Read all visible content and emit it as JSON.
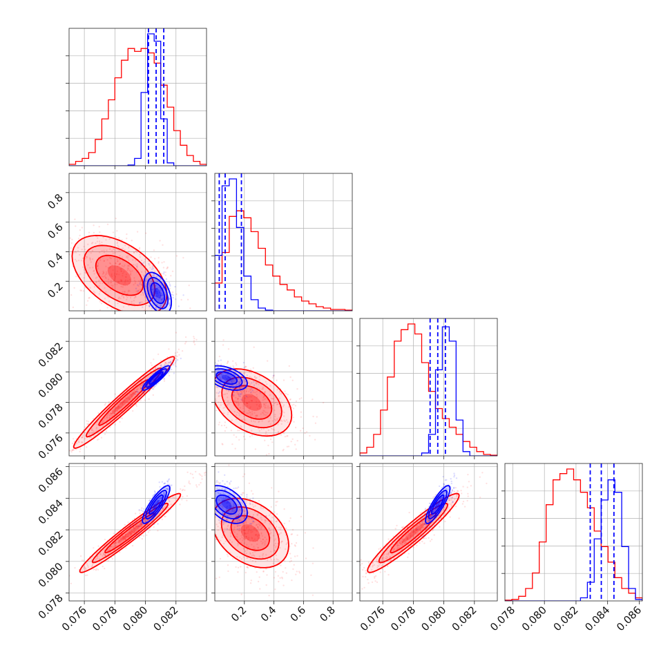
{
  "colors": {
    "posterior_a": "#ff0000",
    "posterior_b": "#0000ff",
    "grid": "#b0b0b0"
  },
  "chart_data": {
    "type": "corner",
    "grid": true,
    "parameters": [
      {
        "range": [
          0.075,
          0.084
        ],
        "ticks": [
          0.076,
          0.078,
          0.08,
          0.082
        ],
        "tick_labels": [
          "0.076",
          "0.078",
          "0.080",
          "0.082"
        ]
      },
      {
        "range": [
          0.0,
          0.93
        ],
        "ticks": [
          0.2,
          0.4,
          0.6,
          0.8
        ],
        "tick_labels": [
          "0.2",
          "0.4",
          "0.6",
          "0.8"
        ]
      },
      {
        "range": [
          0.0745,
          0.0835
        ],
        "ticks": [
          0.076,
          0.078,
          0.08,
          0.082
        ],
        "tick_labels": [
          "0.076",
          "0.078",
          "0.080",
          "0.082"
        ]
      },
      {
        "range": [
          0.0775,
          0.0862
        ],
        "ticks": [
          0.078,
          0.08,
          0.082,
          0.084,
          0.086
        ],
        "tick_labels": [
          "0.078",
          "0.080",
          "0.082",
          "0.084",
          "0.086"
        ]
      }
    ],
    "series": [
      {
        "color": "#ff0000",
        "marginals": [
          {
            "bins": [
              0.075,
              0.084
            ],
            "counts": [
              1,
              3,
              5,
              9,
              18,
              32,
              45,
              60,
              72,
              80,
              78,
              80,
              77,
              70,
              55,
              40,
              24,
              14,
              7,
              3,
              1
            ]
          },
          {
            "bins": [
              0.0,
              0.93
            ],
            "counts": [
              20,
              42,
              68,
              72,
              67,
              57,
              45,
              33,
              25,
              19,
              15,
              10,
              7,
              5,
              3,
              2,
              1,
              1,
              0.5
            ]
          },
          {
            "bins": [
              0.0745,
              0.0835
            ],
            "counts": [
              2,
              6,
              15,
              32,
              55,
              80,
              88,
              92,
              85,
              65,
              45,
              33,
              26,
              20,
              15,
              10,
              6,
              3,
              1,
              0.5
            ]
          },
          {
            "bins": [
              0.0775,
              0.0862
            ],
            "counts": [
              0.5,
              1,
              3,
              8,
              18,
              38,
              62,
              78,
              82,
              85,
              78,
              70,
              60,
              45,
              35,
              25,
              15,
              8,
              5,
              2
            ]
          }
        ],
        "pairs": [
          {
            "x": 0,
            "y": 1,
            "mean": [
              0.0783,
              0.24
            ],
            "sigma": [
              0.00155,
              0.135
            ],
            "rho": -0.48
          },
          {
            "x": 0,
            "y": 2,
            "mean": [
              0.0786,
              0.078
            ],
            "sigma": [
              0.00165,
              0.0015
            ],
            "rho": 0.97
          },
          {
            "x": 0,
            "y": 3,
            "mean": [
              0.079,
              0.0818
            ],
            "sigma": [
              0.00165,
              0.00125
            ],
            "rho": 0.97
          },
          {
            "x": 1,
            "y": 2,
            "mean": [
              0.25,
              0.078
            ],
            "sigma": [
              0.135,
              0.0011
            ],
            "rho": -0.38
          },
          {
            "x": 1,
            "y": 3,
            "mean": [
              0.24,
              0.0818
            ],
            "sigma": [
              0.13,
              0.0011
            ],
            "rho": -0.35
          },
          {
            "x": 2,
            "y": 3,
            "mean": [
              0.078,
              0.0818
            ],
            "sigma": [
              0.0015,
              0.00125
            ],
            "rho": 0.95
          }
        ]
      },
      {
        "color": "#0000ff",
        "marginals": [
          {
            "bins": [
              0.075,
              0.084
            ],
            "counts": [
              0,
              0,
              0,
              0,
              0,
              0,
              0,
              0,
              0,
              0.5,
              5,
              50,
              90,
              85,
              32,
              2,
              0,
              0,
              0,
              0,
              0
            ],
            "quantiles": [
              0.0802,
              0.0807,
              0.0812
            ]
          },
          {
            "bins": [
              0.0,
              0.93
            ],
            "counts": [
              40,
              90,
              95,
              60,
              25,
              8,
              2,
              0.5,
              0,
              0,
              0,
              0,
              0,
              0,
              0,
              0,
              0,
              0,
              0
            ],
            "quantiles": [
              0.03,
              0.07,
              0.18
            ]
          },
          {
            "bins": [
              0.0745,
              0.0835
            ],
            "counts": [
              0,
              0,
              0,
              0,
              0,
              0,
              0,
              0,
              0,
              2,
              15,
              60,
              90,
              80,
              25,
              3,
              0,
              0,
              0,
              0
            ],
            "quantiles": [
              0.0791,
              0.0796,
              0.0801
            ]
          },
          {
            "bins": [
              0.0775,
              0.0862
            ],
            "counts": [
              0,
              0,
              0,
              0,
              0,
              0,
              0,
              0,
              0,
              0,
              0,
              2,
              12,
              40,
              65,
              78,
              70,
              35,
              8,
              1
            ],
            "quantiles": [
              0.0829,
              0.0836,
              0.0844
            ]
          }
        ],
        "pairs": [
          {
            "x": 0,
            "y": 1,
            "mean": [
              0.0808,
              0.12
            ],
            "sigma": [
              0.00045,
              0.07
            ],
            "rho": -0.45
          },
          {
            "x": 0,
            "y": 2,
            "mean": [
              0.0807,
              0.0796
            ],
            "sigma": [
              0.00045,
              0.0004
            ],
            "rho": 0.9
          },
          {
            "x": 0,
            "y": 3,
            "mean": [
              0.0807,
              0.0836
            ],
            "sigma": [
              0.00045,
              0.0006
            ],
            "rho": 0.85
          },
          {
            "x": 1,
            "y": 2,
            "mean": [
              0.08,
              0.0796
            ],
            "sigma": [
              0.07,
              0.0004
            ],
            "rho": -0.45
          },
          {
            "x": 1,
            "y": 3,
            "mean": [
              0.08,
              0.0836
            ],
            "sigma": [
              0.07,
              0.0006
            ],
            "rho": -0.45
          },
          {
            "x": 2,
            "y": 3,
            "mean": [
              0.0796,
              0.0836
            ],
            "sigma": [
              0.0004,
              0.0006
            ],
            "rho": 0.85
          }
        ]
      }
    ]
  }
}
